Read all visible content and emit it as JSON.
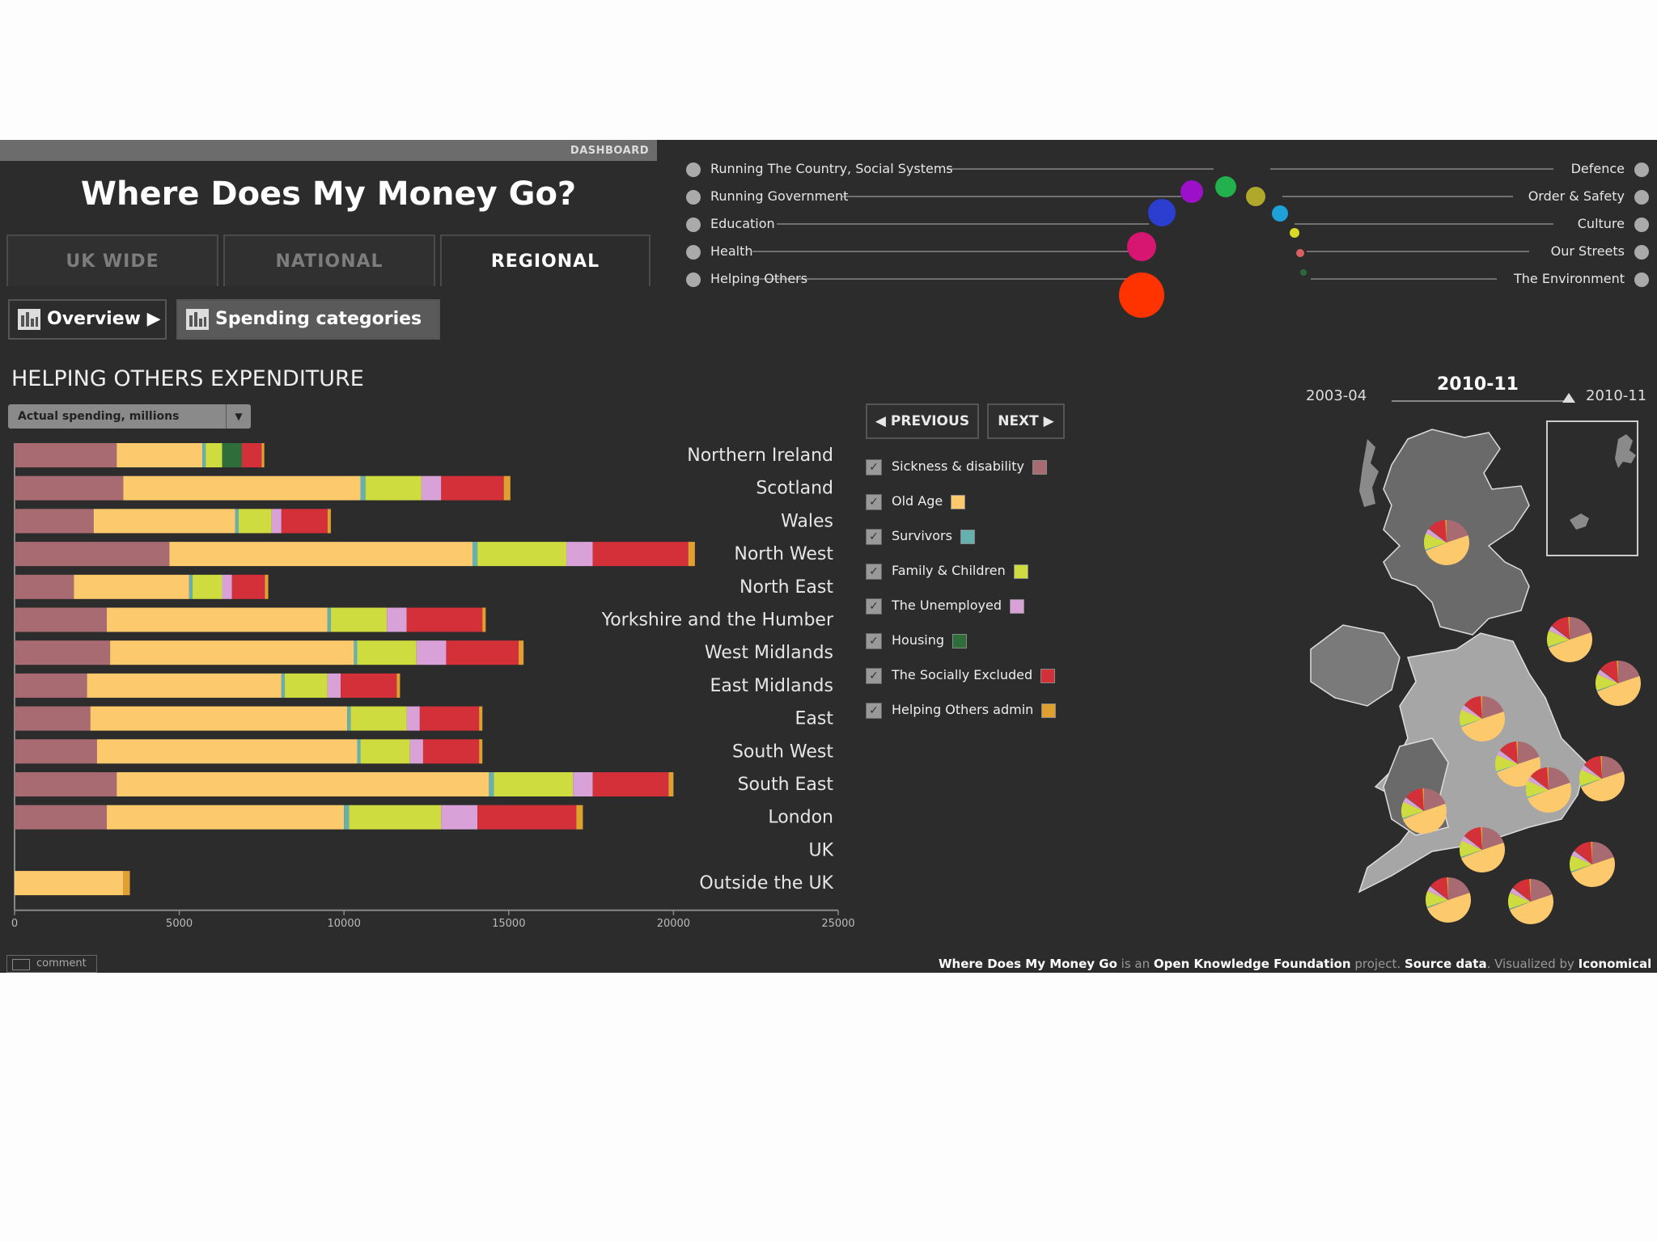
{
  "app": {
    "dashboard_label": "DASHBOARD",
    "title": "Where Does My Money Go?",
    "tabs": [
      {
        "label": "UK WIDE",
        "active": false
      },
      {
        "label": "NATIONAL",
        "active": false
      },
      {
        "label": "REGIONAL",
        "active": true
      }
    ],
    "subnav": {
      "overview": "Overview ▶",
      "spending": "Spending categories"
    }
  },
  "section": {
    "title": "HELPING OTHERS EXPENDITURE",
    "dropdown": "Actual spending, millions"
  },
  "navigation": {
    "previous": "◀ PREVIOUS",
    "next": "NEXT ▶"
  },
  "legend": [
    {
      "label": "Sickness & disability",
      "color": "#a96b72",
      "checked": true
    },
    {
      "label": "Old Age",
      "color": "#fdc96d",
      "checked": true
    },
    {
      "label": "Survivors",
      "color": "#66b0b0",
      "checked": true
    },
    {
      "label": "Family & Children",
      "color": "#cfdc3f",
      "checked": true
    },
    {
      "label": "The Unemployed",
      "color": "#d8a2d8",
      "checked": true
    },
    {
      "label": "Housing",
      "color": "#2f6e3a",
      "checked": true
    },
    {
      "label": "The Socially Excluded",
      "color": "#d3303a",
      "checked": true
    },
    {
      "label": "Helping Others admin",
      "color": "#e0a030",
      "checked": true
    }
  ],
  "categories": {
    "left": [
      "Running The Country, Social Systems",
      "Running Government",
      "Education",
      "Health",
      "Helping Others"
    ],
    "right": [
      "Defence",
      "Order & Safety",
      "Culture",
      "Our Streets",
      "The Environment"
    ],
    "colors": [
      "#9b10c8",
      "#2b3ed0",
      "#d61670",
      "#ff3300",
      "#22b14c",
      "#b0a82a",
      "#1ea0d8",
      "#d8d82a",
      "#d86060",
      "#2a6a3a"
    ]
  },
  "years": {
    "start": "2003-04",
    "current": "2010-11",
    "end": "2010-11"
  },
  "footer": {
    "p1": "Where Does My Money Go",
    "p2": " is an ",
    "p3": "Open Knowledge Foundation",
    "p4": " project. ",
    "p5": "Source data",
    "p6": ". Visualized by ",
    "p7": "Iconomical"
  },
  "comment": "comment",
  "chart_data": {
    "type": "bar",
    "orientation": "horizontal-stacked",
    "categories": [
      "Northern Ireland",
      "Scotland",
      "Wales",
      "North West",
      "North East",
      "Yorkshire and the Humber",
      "West Midlands",
      "East Midlands",
      "East",
      "South West",
      "South East",
      "London",
      "UK",
      "Outside the UK"
    ],
    "series": [
      {
        "name": "Sickness & disability",
        "values": [
          3100,
          3300,
          2400,
          4700,
          1800,
          2800,
          2900,
          2200,
          2300,
          2500,
          3100,
          2800,
          0,
          0
        ]
      },
      {
        "name": "Old Age",
        "values": [
          2600,
          7200,
          4300,
          9200,
          3500,
          6700,
          7400,
          5900,
          7800,
          7900,
          11300,
          7200,
          0,
          3300
        ]
      },
      {
        "name": "Survivors",
        "values": [
          100,
          150,
          100,
          150,
          100,
          100,
          100,
          100,
          100,
          100,
          150,
          150,
          0,
          0
        ]
      },
      {
        "name": "Family & Children",
        "values": [
          500,
          1700,
          1000,
          2700,
          900,
          1700,
          1800,
          1300,
          1700,
          1500,
          2400,
          2800,
          0,
          0
        ]
      },
      {
        "name": "The Unemployed",
        "values": [
          0,
          600,
          300,
          800,
          300,
          600,
          900,
          400,
          400,
          400,
          600,
          1100,
          0,
          0
        ]
      },
      {
        "name": "Housing",
        "values": [
          600,
          0,
          0,
          0,
          0,
          0,
          0,
          0,
          0,
          0,
          0,
          0,
          0,
          0
        ]
      },
      {
        "name": "The Socially Excluded",
        "values": [
          600,
          1900,
          1400,
          2900,
          1000,
          2300,
          2200,
          1700,
          1800,
          1700,
          2300,
          3000,
          0,
          0
        ]
      },
      {
        "name": "Helping Others admin",
        "values": [
          80,
          200,
          100,
          200,
          100,
          100,
          150,
          100,
          100,
          100,
          150,
          200,
          0,
          200
        ]
      }
    ],
    "xlim": [
      0,
      25000
    ],
    "ticks": [
      0,
      5000,
      10000,
      15000,
      20000,
      25000
    ],
    "xlabel": "",
    "ylabel": "",
    "title": "HELPING OTHERS EXPENDITURE"
  }
}
